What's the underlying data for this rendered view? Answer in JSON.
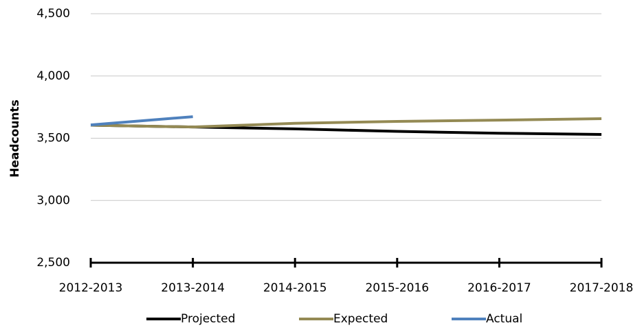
{
  "chart_data": {
    "type": "line",
    "y_label": "Headcounts",
    "categories": [
      "2012-2013",
      "2013-2014",
      "2014-2015",
      "2015-2016",
      "2016-2017",
      "2017-2018"
    ],
    "series": [
      {
        "name": "Projected",
        "color": "#000000",
        "values": [
          3605,
          3590,
          3575,
          3555,
          3540,
          3530
        ]
      },
      {
        "name": "Expected",
        "color": "#948a54",
        "values": [
          3605,
          3590,
          3620,
          3635,
          3645,
          3657
        ]
      },
      {
        "name": "Actual",
        "color": "#4f81bd",
        "values": [
          3607,
          3673,
          null,
          null,
          null,
          null
        ]
      }
    ],
    "ylim": [
      2500,
      4500
    ],
    "yticks": [
      {
        "value": 2500,
        "label": "2,500"
      },
      {
        "value": 3000,
        "label": "3,000"
      },
      {
        "value": 3500,
        "label": "3,500"
      },
      {
        "value": 4000,
        "label": "4,000"
      },
      {
        "value": 4500,
        "label": "4,500"
      }
    ],
    "grid": true,
    "legend": "bottom"
  }
}
